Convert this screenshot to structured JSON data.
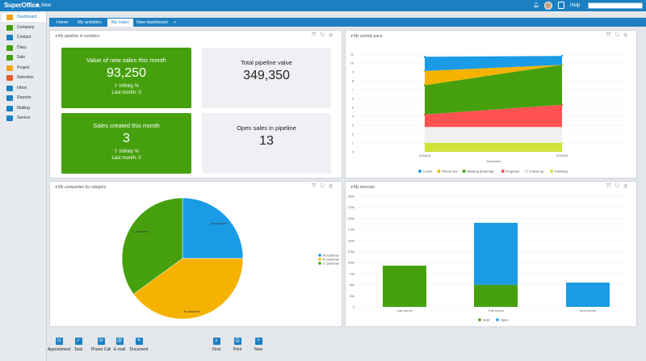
{
  "app": {
    "logo": "SuperOffice.",
    "new_label": "New",
    "help_label": "Help",
    "search_placeholder": ""
  },
  "sidebar": {
    "items": [
      {
        "label": "Dashboard",
        "color": "#f2a31b",
        "active": true
      },
      {
        "label": "Company",
        "color": "#46a00e"
      },
      {
        "label": "Contact",
        "color": "#1c7fc1"
      },
      {
        "label": "Diary",
        "color": "#46a00e"
      },
      {
        "label": "Sale",
        "color": "#46a00e"
      },
      {
        "label": "Project",
        "color": "#f2a31b"
      },
      {
        "label": "Selection",
        "color": "#e05a2a"
      },
      {
        "label": "Inbox",
        "color": "#1c7fc1"
      },
      {
        "label": "Reports",
        "color": "#1c7fc1"
      },
      {
        "label": "Mailing",
        "color": "#1c7fc1"
      },
      {
        "label": "Service",
        "color": "#1c7fc1"
      }
    ]
  },
  "tabs": [
    {
      "label": "Home"
    },
    {
      "label": "My activities"
    },
    {
      "label": "My sales",
      "active": true
    },
    {
      "label": "New dashboard"
    },
    {
      "label": "+"
    }
  ],
  "pipeline": {
    "title": "My pipeline in numbers",
    "tile1": {
      "title": "Value of new sales this month",
      "value": "93,250",
      "sub": "⇧ Infinity %",
      "last": "Last month: 0"
    },
    "tile2": {
      "title": "Total pipeline value",
      "value": "349,350"
    },
    "tile3": {
      "title": "Sales created this month",
      "value": "3",
      "sub": "⇧ Infinity %",
      "last": "Last month: 0"
    },
    "tile4": {
      "title": "Open sales in pipeline",
      "value": "13"
    }
  },
  "activity": {
    "title": "My activity pace",
    "chart_data": {
      "type": "area",
      "x": [
        "2018/16",
        "2018/18"
      ],
      "xlabel": "Year/week",
      "ylim": [
        0,
        12
      ],
      "yticks": [
        0,
        1,
        2,
        3,
        4,
        5,
        6,
        7,
        8,
        9,
        10,
        11
      ],
      "series": [
        {
          "name": "Lunch",
          "color": "#1a9be6",
          "values": [
            1.6,
            1.0
          ]
        },
        {
          "name": "Phone Out",
          "color": "#f5b300",
          "values": [
            1.6,
            0.0
          ]
        },
        {
          "name": "Meeting (External)",
          "color": "#46a00e",
          "values": [
            3.3,
            4.5
          ]
        },
        {
          "name": "Proposal",
          "color": "#ff5252",
          "values": [
            1.4,
            2.5
          ]
        },
        {
          "name": "Follow-up",
          "color": "#f0f0f0",
          "values": [
            1.8,
            1.8
          ]
        },
        {
          "name": "Planning",
          "color": "#cfe23a",
          "values": [
            1.0,
            1.0
          ]
        }
      ]
    }
  },
  "companies": {
    "title": "My companies by category",
    "chart_data": {
      "type": "pie",
      "slices": [
        {
          "label": "A customer",
          "value": 25,
          "color": "#1a9be6"
        },
        {
          "label": "B customer",
          "value": 40,
          "color": "#f5b300"
        },
        {
          "label": "C customer",
          "value": 35,
          "color": "#46a00e"
        }
      ]
    }
  },
  "forecast": {
    "title": "My forecast",
    "chart_data": {
      "type": "bar",
      "stacked": true,
      "categories": [
        "Last month",
        "This month",
        "Next month"
      ],
      "ylim": [
        0,
        250000
      ],
      "yticks": [
        "0",
        "25k",
        "50k",
        "75k",
        "100k",
        "125k",
        "150k",
        "175k",
        "200k",
        "225k",
        "250k"
      ],
      "series": [
        {
          "name": "Sold",
          "color": "#46a00e",
          "values": [
            93250,
            50000,
            0
          ]
        },
        {
          "name": "Open",
          "color": "#1a9be6",
          "values": [
            0,
            140000,
            55000
          ]
        }
      ]
    }
  },
  "actions": [
    {
      "label": "Appointment",
      "glyph": "◷"
    },
    {
      "label": "Task",
      "glyph": "✓"
    },
    {
      "label": "Phone Call",
      "glyph": "☏"
    },
    {
      "label": "E-mail",
      "glyph": "@"
    },
    {
      "label": "Document",
      "glyph": "✎"
    },
    {
      "label": "Find",
      "glyph": "⌕"
    },
    {
      "label": "Print",
      "glyph": "⎙"
    },
    {
      "label": "New",
      "glyph": "+"
    }
  ]
}
